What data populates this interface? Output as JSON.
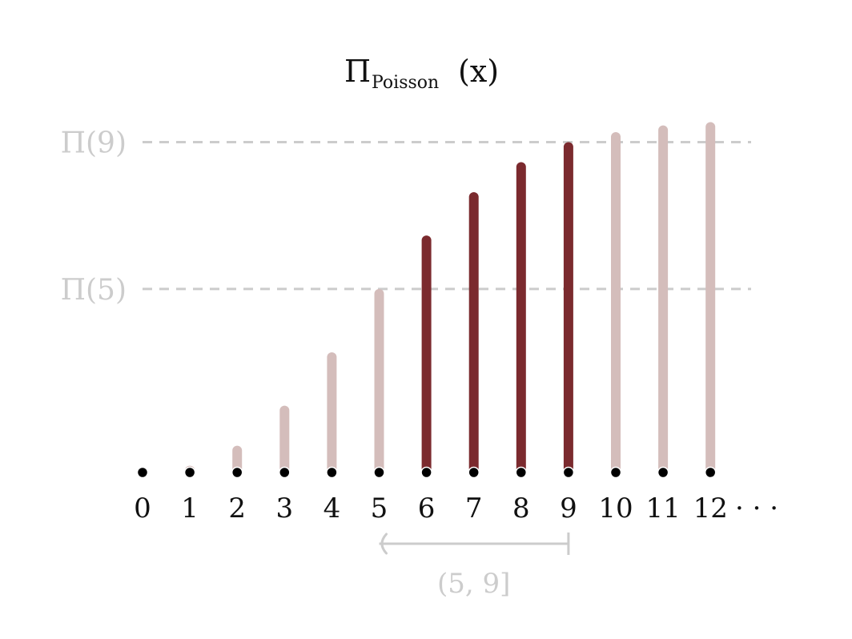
{
  "chart_data": {
    "type": "bar",
    "title": {
      "main": "Π",
      "subscript": "Poisson",
      "suffix": "(x)"
    },
    "categories": [
      "0",
      "1",
      "2",
      "3",
      "4",
      "5",
      "6",
      "7",
      "8",
      "9",
      "10",
      "11",
      "12"
    ],
    "values": [
      0.0,
      0.02,
      0.08,
      0.2,
      0.36,
      0.55,
      0.71,
      0.84,
      0.93,
      0.99,
      1.02,
      1.04,
      1.05
    ],
    "highlighted": [
      false,
      false,
      false,
      false,
      false,
      false,
      true,
      true,
      true,
      true,
      false,
      false,
      false
    ],
    "axis_suffix": "· · ·",
    "ylim": [
      0,
      1.08
    ],
    "reference_lines": [
      {
        "label": "Π(5)",
        "value": 0.55
      },
      {
        "label": "Π(9)",
        "value": 0.99
      }
    ],
    "interval": {
      "label": "(5, 9]",
      "from": 5,
      "to": 9
    },
    "grid": false,
    "colors": {
      "highlight": "#7b2a2e",
      "muted": "#d4bdbb",
      "reference": "#cccccc",
      "dot": "#000000",
      "text": "#111111"
    }
  }
}
